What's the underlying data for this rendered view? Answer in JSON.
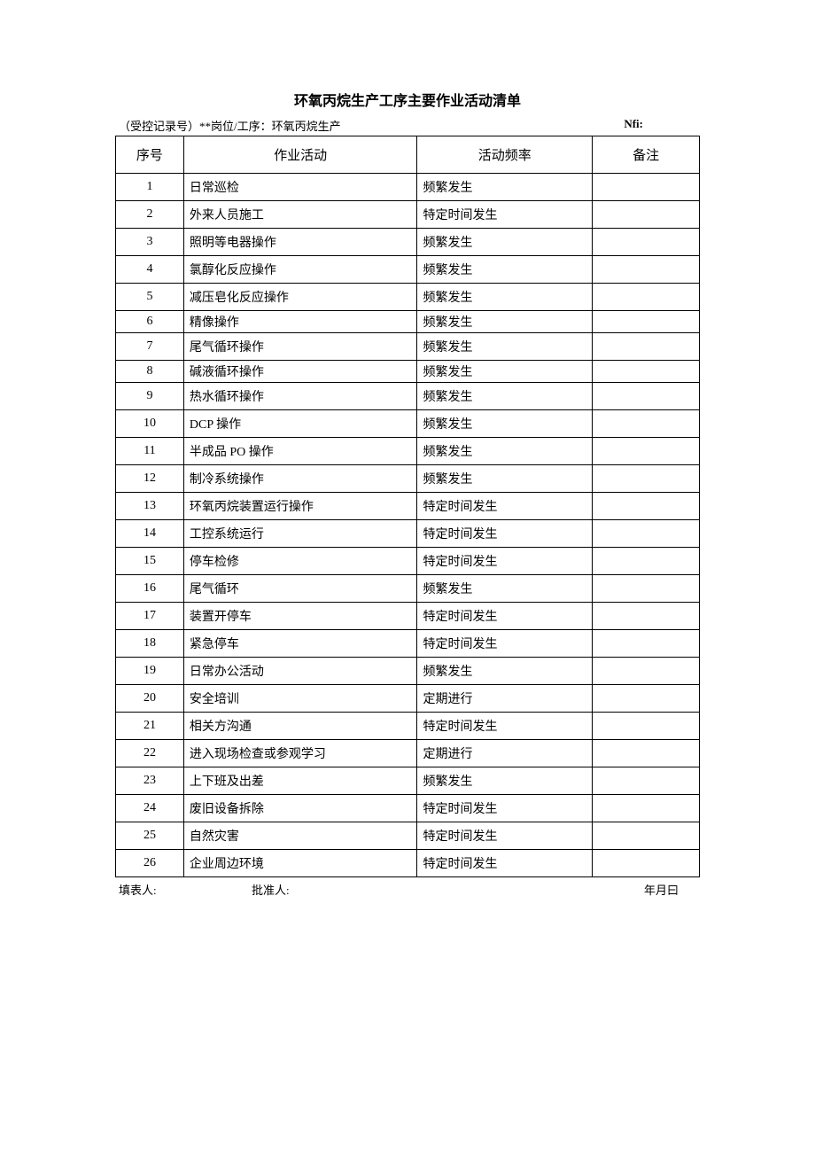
{
  "document": {
    "title": "环氧丙烷生产工序主要作业活动清单",
    "header_left": "（受控记录号）**岗位/工序：环氧丙烷生产",
    "header_right": "Nfi:",
    "columns": {
      "num": "序号",
      "activity": "作业活动",
      "frequency": "活动频率",
      "remark": "备注"
    },
    "rows": [
      {
        "num": "1",
        "activity": "日常巡检",
        "frequency": "频繁发生",
        "remark": ""
      },
      {
        "num": "2",
        "activity": "外来人员施工",
        "frequency": "特定时间发生",
        "remark": ""
      },
      {
        "num": "3",
        "activity": "照明等电器操作",
        "frequency": "频繁发生",
        "remark": ""
      },
      {
        "num": "4",
        "activity": "氯醇化反应操作",
        "frequency": "频繁发生",
        "remark": ""
      },
      {
        "num": "5",
        "activity": "减压皂化反应操作",
        "frequency": "频繁发生",
        "remark": ""
      },
      {
        "num": "6",
        "activity": "精像操作",
        "frequency": "频繁发生",
        "remark": ""
      },
      {
        "num": "7",
        "activity": "尾气循环操作",
        "frequency": "频繁发生",
        "remark": ""
      },
      {
        "num": "8",
        "activity": "碱液循环操作",
        "frequency": "频繁发生",
        "remark": ""
      },
      {
        "num": "9",
        "activity": "热水循环操作",
        "frequency": "频繁发生",
        "remark": ""
      },
      {
        "num": "10",
        "activity": "DCP 操作",
        "frequency": "频繁发生",
        "remark": ""
      },
      {
        "num": "11",
        "activity": "半成品 PO 操作",
        "frequency": "频繁发生",
        "remark": ""
      },
      {
        "num": "12",
        "activity": "制冷系统操作",
        "frequency": "频繁发生",
        "remark": ""
      },
      {
        "num": "13",
        "activity": "环氧丙烷装置运行操作",
        "frequency": "特定时间发生",
        "remark": ""
      },
      {
        "num": "14",
        "activity": "工控系统运行",
        "frequency": "特定时间发生",
        "remark": ""
      },
      {
        "num": "15",
        "activity": "停车检修",
        "frequency": "特定时间发生",
        "remark": ""
      },
      {
        "num": "16",
        "activity": "尾气循环",
        "frequency": "频繁发生",
        "remark": ""
      },
      {
        "num": "17",
        "activity": "装置开停车",
        "frequency": "特定时间发生",
        "remark": ""
      },
      {
        "num": "18",
        "activity": "紧急停车",
        "frequency": "特定时间发生",
        "remark": ""
      },
      {
        "num": "19",
        "activity": "日常办公活动",
        "frequency": "频繁发生",
        "remark": ""
      },
      {
        "num": "20",
        "activity": "安全培训",
        "frequency": "定期进行",
        "remark": ""
      },
      {
        "num": "21",
        "activity": "相关方沟通",
        "frequency": "特定时间发生",
        "remark": ""
      },
      {
        "num": "22",
        "activity": "进入现场检查或参观学习",
        "frequency": "定期进行",
        "remark": ""
      },
      {
        "num": "23",
        "activity": "上下班及出差",
        "frequency": "频繁发生",
        "remark": ""
      },
      {
        "num": "24",
        "activity": "废旧设备拆除",
        "frequency": "特定时间发生",
        "remark": ""
      },
      {
        "num": "25",
        "activity": "自然灾害",
        "frequency": "特定时间发生",
        "remark": ""
      },
      {
        "num": "26",
        "activity": "企业周边环境",
        "frequency": "特定时间发生",
        "remark": ""
      }
    ],
    "footer": {
      "filler": "填表人:",
      "approver": "批准人:",
      "date": "年月曰"
    },
    "styling": {
      "background_color": "#ffffff",
      "text_color": "#000000",
      "border_color": "#000000",
      "title_fontsize": 16,
      "body_fontsize": 14,
      "header_fontsize": 13,
      "col_widths": {
        "num": 70,
        "activity": 240,
        "freq": 180,
        "remark": 110
      }
    },
    "tight_rows": [
      5,
      7
    ]
  }
}
